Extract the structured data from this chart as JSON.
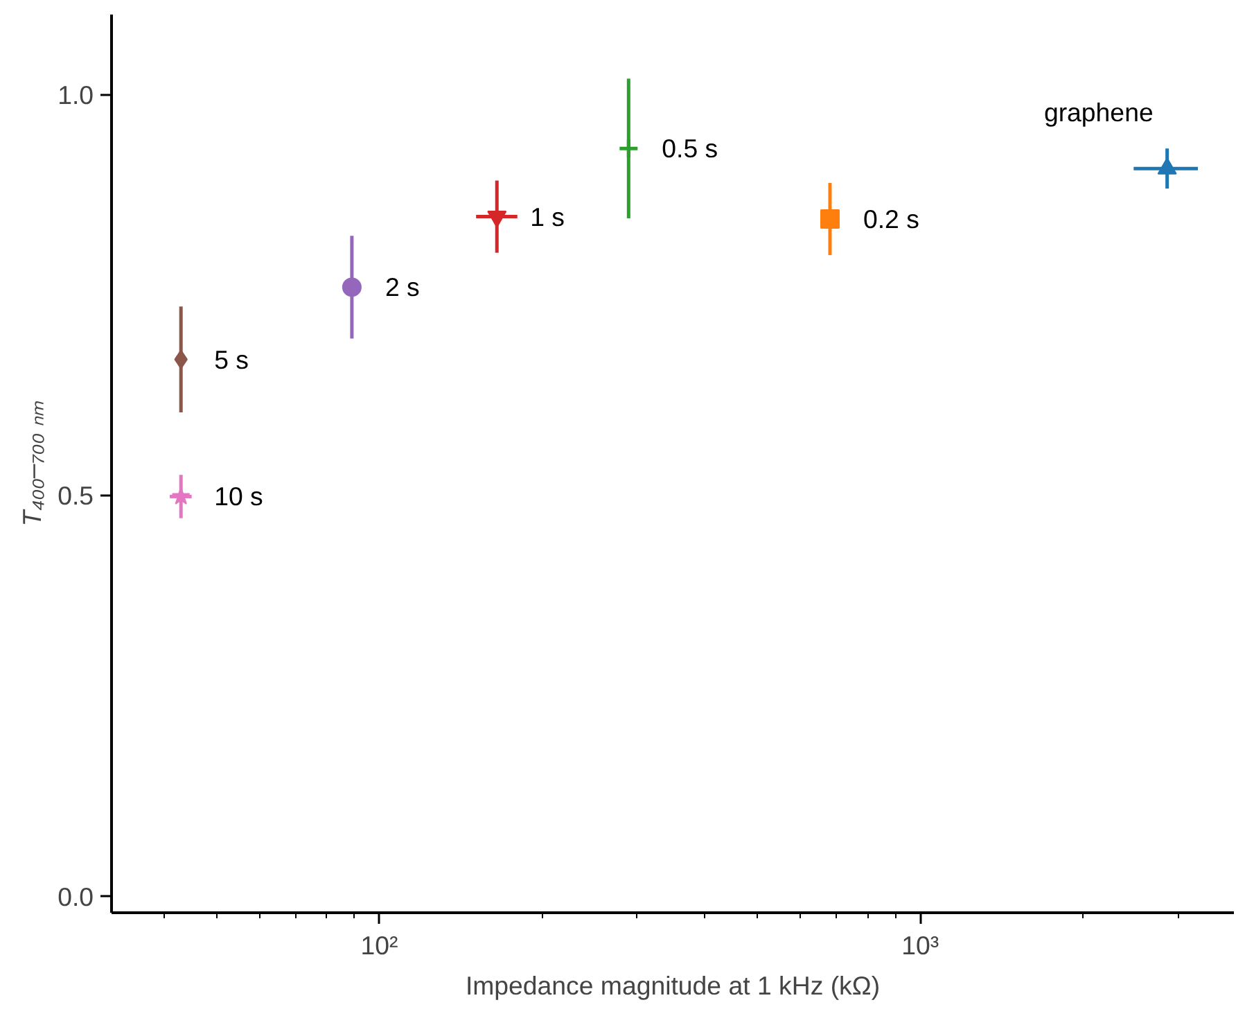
{
  "chart_data": {
    "type": "scatter",
    "xlabel": "Impedance magnitude at 1 kHz (kΩ)",
    "ylabel": "T₄₀₀–₇₀₀ ₙₘ",
    "log": "x",
    "grid": false,
    "xlim": [
      32,
      3800
    ],
    "ylim": [
      -0.02,
      1.1
    ],
    "xticks": [
      {
        "value": 40,
        "label": null
      },
      {
        "value": 50,
        "label": null
      },
      {
        "value": 60,
        "label": null
      },
      {
        "value": 70,
        "label": null
      },
      {
        "value": 80,
        "label": null
      },
      {
        "value": 90,
        "label": null
      },
      {
        "value": 100,
        "label": "10²"
      },
      {
        "value": 200,
        "label": null
      },
      {
        "value": 300,
        "label": null
      },
      {
        "value": 400,
        "label": null
      },
      {
        "value": 500,
        "label": null
      },
      {
        "value": 600,
        "label": null
      },
      {
        "value": 700,
        "label": null
      },
      {
        "value": 800,
        "label": null
      },
      {
        "value": 900,
        "label": null
      },
      {
        "value": 1000,
        "label": "10³"
      },
      {
        "value": 2000,
        "label": null
      },
      {
        "value": 3000,
        "label": null
      }
    ],
    "yticks": [
      {
        "value": 0,
        "label": "0.0"
      },
      {
        "value": 0.5,
        "label": "0.5"
      },
      {
        "value": 1,
        "label": "1.0"
      }
    ],
    "series": [
      {
        "name": "graphene",
        "color": "#1f77b4",
        "marker": "triangle",
        "x": [
          2860
        ],
        "values": [
          0.908
        ],
        "errors": [
          0.025
        ],
        "xerrors": [
          [
            2480,
            3260
          ]
        ]
      },
      {
        "name": "0.2 s",
        "color": "#ff7f0e",
        "marker": "square",
        "x": [
          681
        ],
        "values": [
          0.845
        ],
        "errors": [
          0.045
        ],
        "xerrors": [
          null
        ]
      },
      {
        "name": "0.5 s",
        "color": "#2ca02c",
        "marker": "cross",
        "x": [
          289
        ],
        "values": [
          0.933
        ],
        "errors": [
          0.087
        ],
        "xerrors": [
          null
        ]
      },
      {
        "name": "1 s",
        "color": "#d62728",
        "marker": "triangle_down",
        "x": [
          165
        ],
        "values": [
          0.848
        ],
        "errors": [
          0.045
        ],
        "xerrors": [
          [
            151,
            180
          ]
        ]
      },
      {
        "name": "2 s",
        "color": "#9467bd",
        "marker": "circle",
        "x": [
          89
        ],
        "values": [
          0.76
        ],
        "errors": [
          0.064
        ],
        "xerrors": [
          null
        ]
      },
      {
        "name": "5 s",
        "color": "#8c564b",
        "marker": "diamond",
        "x": [
          43
        ],
        "values": [
          0.67
        ],
        "errors": [
          0.066
        ],
        "xerrors": [
          null
        ]
      },
      {
        "name": "10 s",
        "color": "#e377c2",
        "marker": "star",
        "x": [
          43
        ],
        "values": [
          0.499
        ],
        "errors": [
          0.027
        ],
        "xerrors": [
          [
            41,
            45
          ]
        ]
      }
    ]
  }
}
